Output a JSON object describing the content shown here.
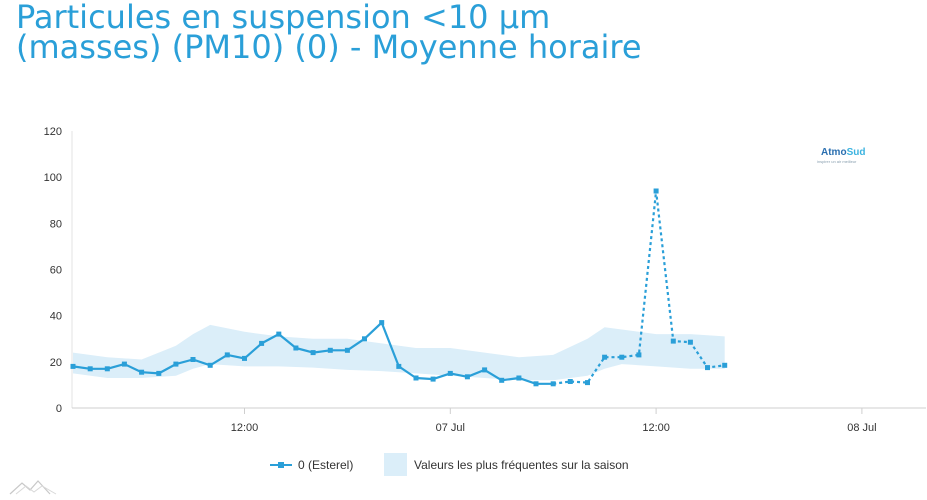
{
  "title": {
    "line1": "Particules en suspension <10 µm",
    "line2": "(masses) (PM10) (0) - Moyenne horaire"
  },
  "logo": {
    "brand_a": "Atmo",
    "brand_b": "Sud",
    "tagline": "inspirer un air meilleur"
  },
  "colors": {
    "series": "#2a9fd8",
    "band": "#dbeef9",
    "title": "#2a9fd8"
  },
  "chart_data": {
    "type": "line",
    "x_unit": "hour index from 2 a.m. on 6 July",
    "ylim": [
      0,
      120
    ],
    "yticks": [
      0,
      20,
      40,
      60,
      80,
      100,
      120
    ],
    "xticks": [
      {
        "label": "12:00",
        "x": 10
      },
      {
        "label": "07 Jul",
        "x": 22
      },
      {
        "label": "12:00",
        "x": 34
      },
      {
        "label": "08 Jul",
        "x": 46
      }
    ],
    "xlim": [
      0,
      49
    ],
    "series": [
      {
        "name": "0 (Esterel)",
        "x": [
          0,
          1,
          2,
          3,
          4,
          5,
          6,
          7,
          8,
          9,
          10,
          11,
          12,
          13,
          14,
          15,
          16,
          17,
          18,
          19,
          20,
          21,
          22,
          23,
          24,
          25,
          26,
          27,
          28,
          29,
          30,
          31,
          32,
          33,
          34,
          35,
          36,
          37,
          38
        ],
        "values": [
          18,
          17,
          17,
          19,
          15.5,
          15,
          19,
          21,
          18.5,
          23,
          21.5,
          28,
          32,
          26,
          24,
          25,
          25,
          30,
          37,
          18,
          13,
          12.5,
          15,
          13.5,
          16.5,
          12,
          13,
          10.5,
          10.5,
          11.5,
          11,
          22,
          22,
          23,
          94,
          29,
          28.5,
          17.5,
          18.5
        ],
        "validated_until_index": 28
      },
      {
        "name": "Valeurs les plus fréquentes sur la saison",
        "x": [
          0,
          2,
          4,
          6,
          7,
          8,
          10,
          12,
          14,
          16,
          18,
          20,
          22,
          24,
          26,
          28,
          30,
          31,
          32,
          34,
          36,
          38
        ],
        "low": [
          15,
          13,
          13,
          14,
          17,
          19,
          18,
          18,
          17.5,
          16.5,
          16,
          15,
          14,
          13,
          12,
          12,
          14,
          17,
          19,
          18,
          17,
          17
        ],
        "high": [
          24,
          22,
          21,
          27,
          32,
          36,
          33,
          31,
          30,
          30,
          28,
          26,
          26,
          24,
          22,
          23,
          30,
          35,
          34,
          32,
          32,
          31
        ]
      }
    ]
  }
}
